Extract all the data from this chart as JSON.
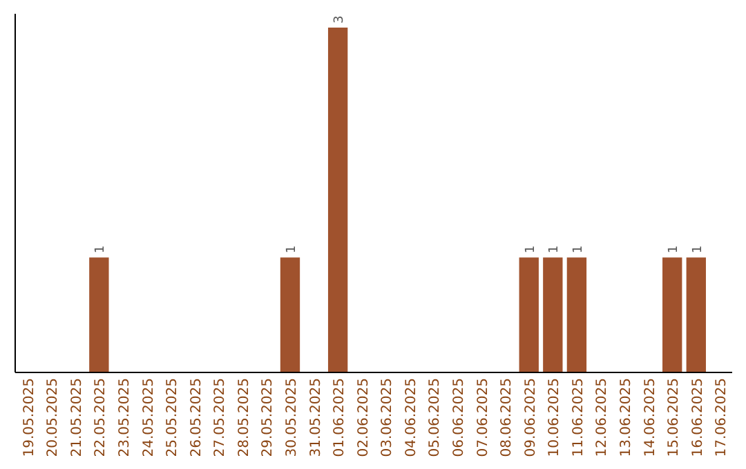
{
  "chart_data": {
    "type": "bar",
    "categories": [
      "19.05.2025",
      "20.05.2025",
      "21.05.2025",
      "22.05.2025",
      "23.05.2025",
      "24.05.2025",
      "25.05.2025",
      "26.05.2025",
      "27.05.2025",
      "28.05.2025",
      "29.05.2025",
      "30.05.2025",
      "31.05.2025",
      "01.06.2025",
      "02.06.2025",
      "03.06.2025",
      "04.06.2025",
      "05.06.2025",
      "06.06.2025",
      "07.06.2025",
      "08.06.2025",
      "09.06.2025",
      "10.06.2025",
      "11.06.2025",
      "12.06.2025",
      "13.06.2025",
      "14.06.2025",
      "15.06.2025",
      "16.06.2025",
      "17.06.2025"
    ],
    "values": [
      0,
      0,
      0,
      1,
      0,
      0,
      0,
      0,
      0,
      0,
      0,
      1,
      0,
      3,
      0,
      0,
      0,
      0,
      0,
      0,
      0,
      1,
      1,
      1,
      0,
      0,
      0,
      1,
      1,
      0
    ],
    "value_labels": [
      null,
      null,
      null,
      "1",
      null,
      null,
      null,
      null,
      null,
      null,
      null,
      "1",
      null,
      "3",
      null,
      null,
      null,
      null,
      null,
      null,
      null,
      "1",
      "1",
      "1",
      null,
      null,
      null,
      "1",
      "1",
      null
    ],
    "color": "#a0522d",
    "tick_labels": "x"
  }
}
